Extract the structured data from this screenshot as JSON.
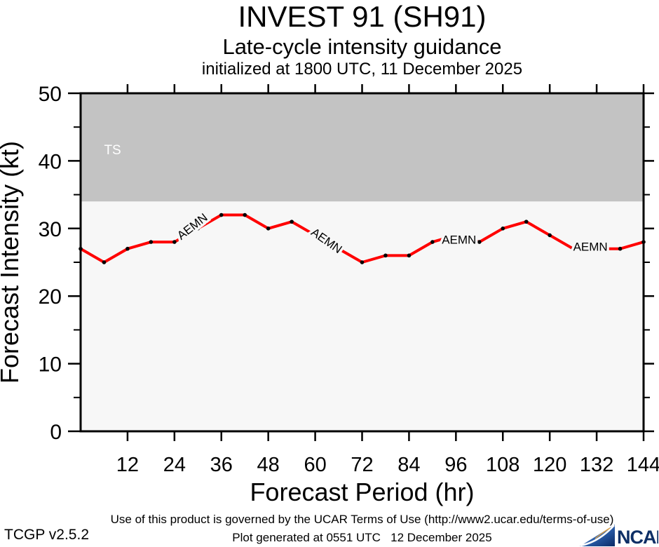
{
  "header": {
    "title": "INVEST 91 (SH91)",
    "subtitle": "Late-cycle intensity guidance",
    "init_line": "initialized at 1800 UTC, 11 December 2025"
  },
  "chart_data": {
    "type": "line",
    "title": "INVEST 91 (SH91)",
    "subtitle": "Late-cycle intensity guidance",
    "initialized": "initialized at 1800 UTC, 11 December 2025",
    "xlabel": "Forecast Period (hr)",
    "ylabel": "Forecast Intensity (kt)",
    "xlim": [
      0,
      144
    ],
    "ylim": [
      0,
      50
    ],
    "xticks": [
      12,
      24,
      36,
      48,
      60,
      72,
      84,
      96,
      108,
      120,
      132,
      144
    ],
    "yticks_major": [
      0,
      10,
      20,
      30,
      40,
      50
    ],
    "yticks_minor": [
      5,
      15,
      25,
      35,
      45
    ],
    "grid": false,
    "legend_position": "none",
    "series": [
      {
        "name": "AEMN",
        "color": "#ff0000",
        "x": [
          0,
          6,
          12,
          18,
          24,
          30,
          36,
          42,
          48,
          54,
          60,
          66,
          72,
          78,
          84,
          90,
          96,
          102,
          108,
          114,
          120,
          126,
          132,
          138,
          144
        ],
        "values": [
          27,
          25,
          27,
          28,
          28,
          30,
          32,
          32,
          30,
          31,
          29,
          27,
          25,
          26,
          26,
          28,
          29,
          28,
          30,
          31,
          29,
          27,
          27,
          27,
          28
        ]
      }
    ],
    "series_labels": [
      {
        "text": "AEMN",
        "x": 28.7,
        "y": 30.2,
        "rotation": -38
      },
      {
        "text": "AEMN",
        "x": 62.8,
        "y": 28.1,
        "rotation": 35
      },
      {
        "text": "AEMN",
        "x": 96.8,
        "y": 28.2,
        "rotation": 0
      },
      {
        "text": "AEMN",
        "x": 130.4,
        "y": 27.2,
        "rotation": 0
      }
    ],
    "threshold_regions": [
      {
        "label": "TS",
        "from": 34,
        "to": 50,
        "color": "#c3c3c3",
        "label_color": "#ffffff",
        "label_x": 6,
        "label_y": 41
      }
    ]
  },
  "footer": {
    "terms": "Use of this product is governed by the UCAR Terms of Use (http://www2.ucar.edu/terms-of-use)",
    "version": "TCGP v2.5.2",
    "generated": "Plot generated at 0551 UTC   12 December 2025",
    "logo_text": "NCAR"
  },
  "colors": {
    "line": "#ff0000",
    "marker": "#000000",
    "plot_bg": "#f7f7f7",
    "ts_region": "#c3c3c3",
    "frame": "#000000",
    "ts_label": "#ffffff",
    "logo_navy": "#0e2f66",
    "logo_light": "#9cc0e4",
    "logo_orange": "#e8a33d"
  }
}
